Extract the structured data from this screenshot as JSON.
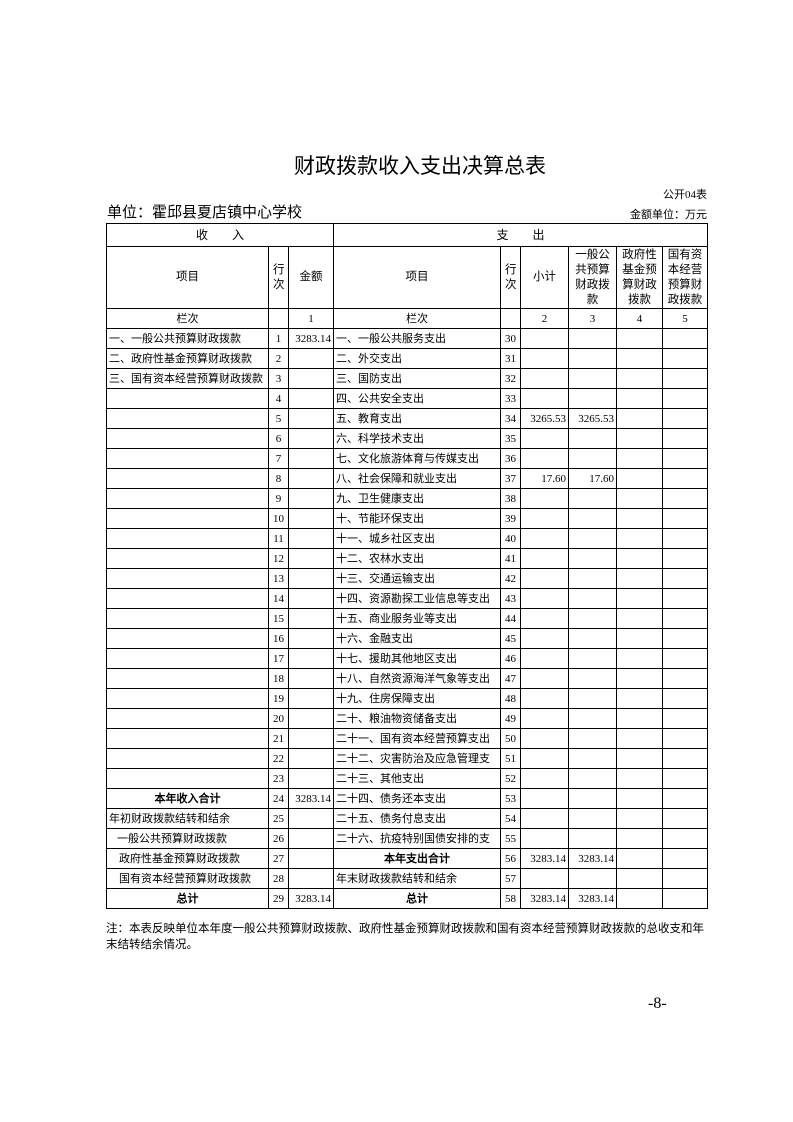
{
  "header": {
    "title": "财政拨款收入支出决算总表",
    "form_no": "公开04表",
    "unit": "单位：霍邱县夏店镇中心学校",
    "amount_unit": "金额单位：万元"
  },
  "table": {
    "group_headers": [
      "收　　入",
      "支　　出"
    ],
    "columns": [
      "项目",
      "行次",
      "金额",
      "项目",
      "行次",
      "小计",
      "一般公共预算财政拨款",
      "政府性基金预算财政拨款",
      "国有资本经营预算财政拨款"
    ],
    "column_numbers": [
      "栏次",
      null,
      "1",
      "栏次",
      null,
      "2",
      "3",
      "4",
      "5"
    ],
    "rows": [
      [
        "一、一般公共预算财政拨款",
        "1",
        "3283.14",
        "一、一般公共服务支出",
        "30",
        null,
        null,
        null,
        null
      ],
      [
        "二、政府性基金预算财政拨款",
        "2",
        null,
        "二、外交支出",
        "31",
        null,
        null,
        null,
        null
      ],
      [
        "三、国有资本经营预算财政拨款",
        "3",
        null,
        "三、国防支出",
        "32",
        null,
        null,
        null,
        null
      ],
      [
        null,
        "4",
        null,
        "四、公共安全支出",
        "33",
        null,
        null,
        null,
        null
      ],
      [
        null,
        "5",
        null,
        "五、教育支出",
        "34",
        "3265.53",
        "3265.53",
        null,
        null
      ],
      [
        null,
        "6",
        null,
        "六、科学技术支出",
        "35",
        null,
        null,
        null,
        null
      ],
      [
        null,
        "7",
        null,
        "七、文化旅游体育与传媒支出",
        "36",
        null,
        null,
        null,
        null
      ],
      [
        null,
        "8",
        null,
        "八、社会保障和就业支出",
        "37",
        "17.60",
        "17.60",
        null,
        null
      ],
      [
        null,
        "9",
        null,
        "九、卫生健康支出",
        "38",
        null,
        null,
        null,
        null
      ],
      [
        null,
        "10",
        null,
        "十、节能环保支出",
        "39",
        null,
        null,
        null,
        null
      ],
      [
        null,
        "11",
        null,
        "十一、城乡社区支出",
        "40",
        null,
        null,
        null,
        null
      ],
      [
        null,
        "12",
        null,
        "十二、农林水支出",
        "41",
        null,
        null,
        null,
        null
      ],
      [
        null,
        "13",
        null,
        "十三、交通运输支出",
        "42",
        null,
        null,
        null,
        null
      ],
      [
        null,
        "14",
        null,
        "十四、资源勘探工业信息等支出",
        "43",
        null,
        null,
        null,
        null
      ],
      [
        null,
        "15",
        null,
        "十五、商业服务业等支出",
        "44",
        null,
        null,
        null,
        null
      ],
      [
        null,
        "16",
        null,
        "十六、金融支出",
        "45",
        null,
        null,
        null,
        null
      ],
      [
        null,
        "17",
        null,
        "十七、援助其他地区支出",
        "46",
        null,
        null,
        null,
        null
      ],
      [
        null,
        "18",
        null,
        "十八、自然资源海洋气象等支出",
        "47",
        null,
        null,
        null,
        null
      ],
      [
        null,
        "19",
        null,
        "十九、住房保障支出",
        "48",
        null,
        null,
        null,
        null
      ],
      [
        null,
        "20",
        null,
        "二十、粮油物资储备支出",
        "49",
        null,
        null,
        null,
        null
      ],
      [
        null,
        "21",
        null,
        "二十一、国有资本经营预算支出",
        "50",
        null,
        null,
        null,
        null
      ],
      [
        null,
        "22",
        null,
        "二十二、灾害防治及应急管理支",
        "51",
        null,
        null,
        null,
        null
      ],
      [
        null,
        "23",
        null,
        "二十三、其他支出",
        "52",
        null,
        null,
        null,
        null
      ],
      [
        "本年收入合计",
        "24",
        "3283.14",
        "二十四、债务还本支出",
        "53",
        null,
        null,
        null,
        null
      ],
      [
        "年初财政拨款结转和结余",
        "25",
        null,
        "二十五、债务付息支出",
        "54",
        null,
        null,
        null,
        null
      ],
      [
        "一般公共预算财政拨款",
        "26",
        null,
        "二十六、抗疫特别国债安排的支",
        "55",
        null,
        null,
        null,
        null
      ],
      [
        "政府性基金预算财政拨款",
        "27",
        null,
        "本年支出合计",
        "56",
        "3283.14",
        "3283.14",
        null,
        null
      ],
      [
        "国有资本经营预算财政拨款",
        "28",
        null,
        "年末财政拨款结转和结余",
        "57",
        null,
        null,
        null,
        null
      ],
      [
        "总计",
        "29",
        "3283.14",
        "总计",
        "58",
        "3283.14",
        "3283.14",
        null,
        null
      ]
    ]
  },
  "footer": {
    "note": "注：本表反映单位本年度一般公共预算财政拨款、政府性基金预算财政拨款和国有资本经营预算财政拨款的总收支和年末结转结余情况。",
    "page": "-8-"
  }
}
